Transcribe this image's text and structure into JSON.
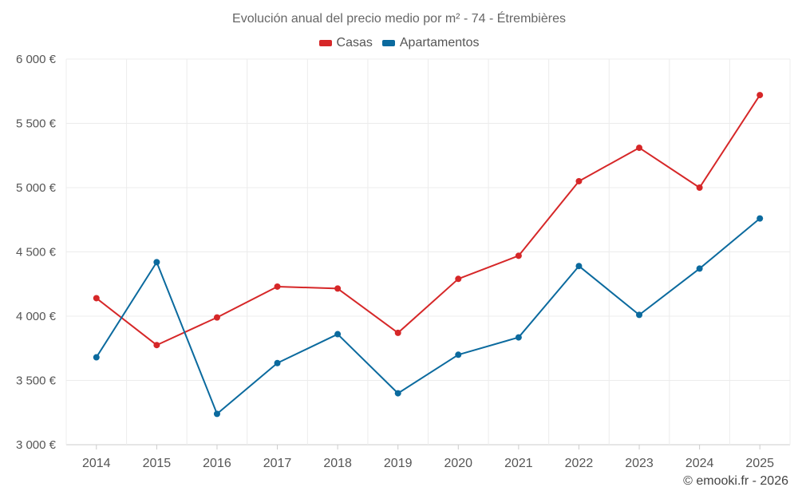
{
  "chart_data": {
    "type": "line",
    "title": "Evolución anual del precio medio por m² - 74 - Étrembières",
    "categories": [
      "2014",
      "2015",
      "2016",
      "2017",
      "2018",
      "2019",
      "2020",
      "2021",
      "2022",
      "2023",
      "2024",
      "2025"
    ],
    "series": [
      {
        "name": "Casas",
        "color": "#d62728",
        "values": [
          4140,
          3775,
          3990,
          4230,
          4215,
          3870,
          4290,
          4470,
          5050,
          5310,
          5000,
          5720
        ]
      },
      {
        "name": "Apartamentos",
        "color": "#0b6a9e",
        "values": [
          3680,
          4420,
          3240,
          3635,
          3860,
          3400,
          3700,
          3835,
          4390,
          4010,
          4370,
          4760
        ]
      }
    ],
    "y_ticks": [
      3000,
      3500,
      4000,
      4500,
      5000,
      5500,
      6000
    ],
    "y_tick_labels": [
      "3 000 €",
      "3 500 €",
      "4 000 €",
      "4 500 €",
      "5 000 €",
      "5 500 €",
      "6 000 €"
    ],
    "ylim": [
      3000,
      6000
    ],
    "xlabel": "",
    "ylabel": "",
    "grid": true,
    "legend_position": "top-center"
  },
  "credit": "© emooki.fr - 2026"
}
